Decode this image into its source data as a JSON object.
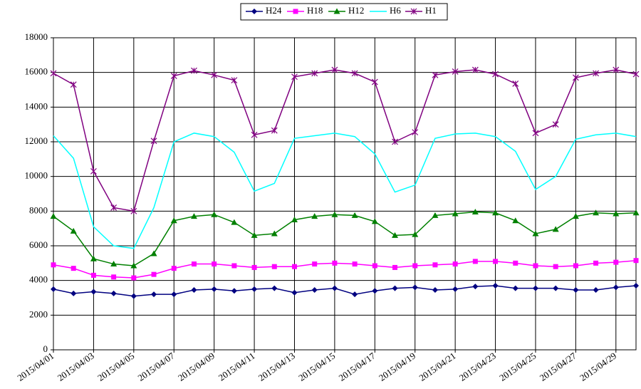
{
  "chart_data": {
    "type": "line",
    "categories": [
      "2015/04/01",
      null,
      "2015/04/03",
      null,
      "2015/04/05",
      null,
      "2015/04/07",
      null,
      "2015/04/09",
      null,
      "2015/04/11",
      null,
      "2015/04/13",
      null,
      "2015/04/15",
      null,
      "2015/04/17",
      null,
      "2015/04/19",
      null,
      "2015/04/21",
      null,
      "2015/04/23",
      null,
      "2015/04/25",
      null,
      "2015/04/27",
      null,
      "2015/04/29",
      null
    ],
    "ylim": [
      0,
      18000
    ],
    "yticks": [
      0,
      2000,
      4000,
      6000,
      8000,
      10000,
      12000,
      14000,
      16000,
      18000
    ],
    "grid": true,
    "legend": "top",
    "series": [
      {
        "name": "H24",
        "color": "#000080",
        "marker": "diamond",
        "values": [
          3500,
          3250,
          3350,
          3250,
          3100,
          3200,
          3200,
          3450,
          3500,
          3400,
          3500,
          3550,
          3300,
          3450,
          3550,
          3200,
          3400,
          3550,
          3600,
          3450,
          3500,
          3650,
          3700,
          3550,
          3550,
          3550,
          3450,
          3450,
          3600,
          3700
        ]
      },
      {
        "name": "H18",
        "color": "#ff00ff",
        "marker": "square",
        "values": [
          4900,
          4700,
          4300,
          4200,
          4150,
          4350,
          4700,
          4950,
          4950,
          4850,
          4750,
          4800,
          4800,
          4950,
          5000,
          4950,
          4850,
          4750,
          4850,
          4900,
          4950,
          5100,
          5100,
          5000,
          4850,
          4800,
          4850,
          5000,
          5050,
          5150
        ]
      },
      {
        "name": "H12",
        "color": "#008000",
        "marker": "triangle",
        "values": [
          7700,
          6850,
          5250,
          4950,
          4850,
          5550,
          7450,
          7700,
          7800,
          7350,
          6600,
          6700,
          7500,
          7700,
          7800,
          7750,
          7400,
          6600,
          6650,
          7750,
          7850,
          7950,
          7900,
          7450,
          6700,
          6950,
          7700,
          7900,
          7850,
          7900
        ]
      },
      {
        "name": "H6",
        "color": "#00ffff",
        "marker": "none",
        "values": [
          12350,
          11050,
          7100,
          6000,
          5850,
          8200,
          12000,
          12500,
          12300,
          11400,
          9150,
          9600,
          12200,
          12350,
          12500,
          12300,
          11300,
          9100,
          9500,
          12200,
          12450,
          12500,
          12300,
          11450,
          9250,
          10000,
          12150,
          12400,
          12500,
          12300
        ]
      },
      {
        "name": "H1",
        "color": "#800080",
        "marker": "star",
        "values": [
          15950,
          15300,
          10300,
          8200,
          8000,
          12050,
          15800,
          16100,
          15850,
          15550,
          12400,
          12650,
          15750,
          15950,
          16150,
          15950,
          15450,
          12000,
          12550,
          15850,
          16050,
          16150,
          15900,
          15350,
          12500,
          13000,
          15700,
          15950,
          16150,
          15900
        ]
      }
    ]
  }
}
